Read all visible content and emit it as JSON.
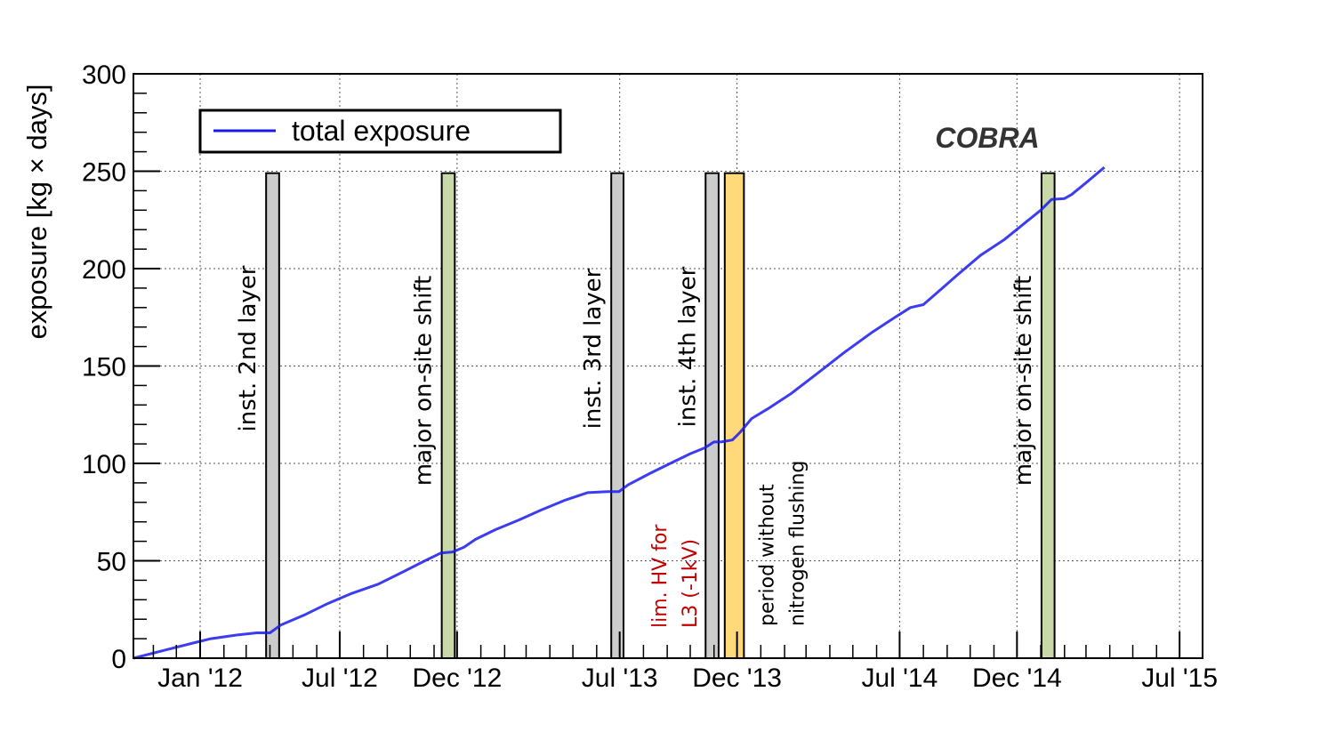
{
  "chart_data": {
    "type": "line",
    "title": "",
    "brand_label": "COBRA",
    "xlabel": "",
    "ylabel": "exposure [kg × days]",
    "ylim": [
      0,
      300
    ],
    "yticks": [
      0,
      50,
      100,
      150,
      200,
      250,
      300
    ],
    "xlim": [
      "2011-10-06",
      "2015-07-31"
    ],
    "xticks": [
      {
        "date": "2012-01-01",
        "label": "Jan '12"
      },
      {
        "date": "2012-07-01",
        "label": "Jul '12"
      },
      {
        "date": "2012-12-01",
        "label": "Dec '12"
      },
      {
        "date": "2013-07-01",
        "label": "Jul '13"
      },
      {
        "date": "2013-12-01",
        "label": "Dec '13"
      },
      {
        "date": "2014-07-01",
        "label": "Jul '14"
      },
      {
        "date": "2014-12-01",
        "label": "Dec '14"
      },
      {
        "date": "2015-07-01",
        "label": "Jul '15"
      }
    ],
    "grid": true,
    "legend": {
      "position": "top-left",
      "entries": [
        {
          "label": "total exposure",
          "color": "#1a1aee"
        }
      ]
    },
    "series": [
      {
        "name": "total exposure",
        "color": "#1a1aee",
        "x": [
          "2011-10-06",
          "2011-11-15",
          "2011-12-25",
          "2012-01-15",
          "2012-02-20",
          "2012-03-15",
          "2012-04-01",
          "2012-04-15",
          "2012-05-15",
          "2012-06-15",
          "2012-07-15",
          "2012-08-20",
          "2012-09-20",
          "2012-10-20",
          "2012-11-10",
          "2012-11-25",
          "2012-12-10",
          "2012-12-25",
          "2013-01-20",
          "2013-02-20",
          "2013-03-20",
          "2013-04-20",
          "2013-05-20",
          "2013-06-15",
          "2013-06-30",
          "2013-07-12",
          "2013-08-10",
          "2013-09-05",
          "2013-10-01",
          "2013-10-20",
          "2013-11-01",
          "2013-11-10",
          "2013-11-25",
          "2013-12-05",
          "2013-12-20",
          "2014-01-10",
          "2014-02-10",
          "2014-03-15",
          "2014-04-20",
          "2014-05-25",
          "2014-06-25",
          "2014-07-15",
          "2014-08-01",
          "2014-08-20",
          "2014-09-15",
          "2014-10-15",
          "2014-11-15",
          "2014-12-10",
          "2015-01-01",
          "2015-01-15",
          "2015-02-01",
          "2015-02-10",
          "2015-03-01",
          "2015-03-25"
        ],
        "values": [
          0,
          4,
          8,
          10,
          12,
          13,
          13,
          17,
          22,
          28,
          33,
          38,
          44,
          50,
          54,
          54.5,
          57,
          61,
          66,
          71,
          76,
          81,
          85,
          85.5,
          85.5,
          89,
          95,
          100,
          105,
          108,
          111,
          111,
          112,
          116,
          123,
          128,
          136,
          146,
          157,
          167,
          175,
          180,
          181.5,
          188,
          197,
          207,
          215,
          223,
          230,
          235.5,
          236,
          238,
          244,
          252
        ]
      }
    ],
    "bands": [
      {
        "start": "2012-03-27",
        "end": "2012-04-13",
        "color": "#cccccc",
        "label": "inst. 2nd layer"
      },
      {
        "start": "2012-11-11",
        "end": "2012-11-28",
        "color": "#c8d8a8",
        "label": "major on-site shift"
      },
      {
        "start": "2013-06-20",
        "end": "2013-07-06",
        "color": "#cccccc",
        "label": "inst. 3rd layer"
      },
      {
        "start": "2013-10-21",
        "end": "2013-11-07",
        "color": "#cccccc",
        "label": "inst. 4th layer"
      },
      {
        "start": "2013-11-15",
        "end": "2013-12-10",
        "color": "#ffd97a",
        "label": "period without|nitrogen flushing"
      },
      {
        "start": "2015-01-02",
        "end": "2015-01-19",
        "color": "#c8d8a8",
        "label": "major on-site shift"
      }
    ],
    "notes": [
      {
        "lines": [
          "lim. HV for",
          "L3 (-1kV)"
        ],
        "color": "#c00000"
      }
    ]
  }
}
